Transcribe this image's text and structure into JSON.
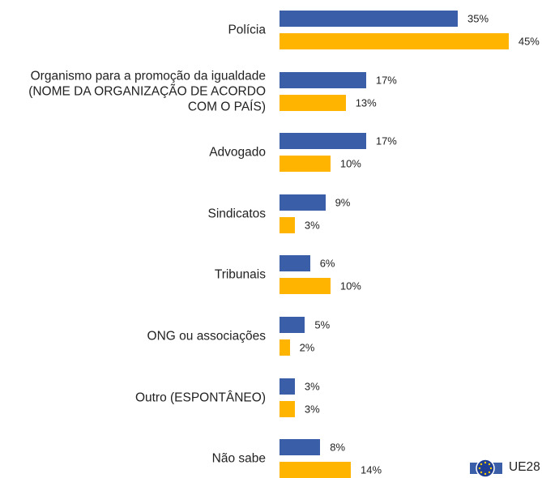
{
  "chart_data": {
    "type": "bar",
    "orientation": "horizontal",
    "categories": [
      "Polícia",
      "Organismo para a promoção da igualdade (NOME DA ORGANIZAÇÃO DE ACORDO COM O PAÍS)",
      "Advogado",
      "Sindicatos",
      "Tribunais",
      "ONG ou associações",
      "Outro (ESPONTÂNEO)",
      "Não sabe"
    ],
    "series": [
      {
        "name": "UE28",
        "color": "#3a5fa8",
        "values": [
          35,
          17,
          17,
          9,
          6,
          5,
          3,
          8
        ],
        "value_labels": [
          "35%",
          "17%",
          "17%",
          "9%",
          "6%",
          "5%",
          "3%",
          "8%"
        ]
      },
      {
        "color": "#ffb400",
        "values": [
          45,
          13,
          10,
          3,
          10,
          2,
          3,
          14
        ],
        "value_labels": [
          "45%",
          "13%",
          "10%",
          "3%",
          "10%",
          "2%",
          "3%",
          "14%"
        ]
      }
    ]
  }
}
